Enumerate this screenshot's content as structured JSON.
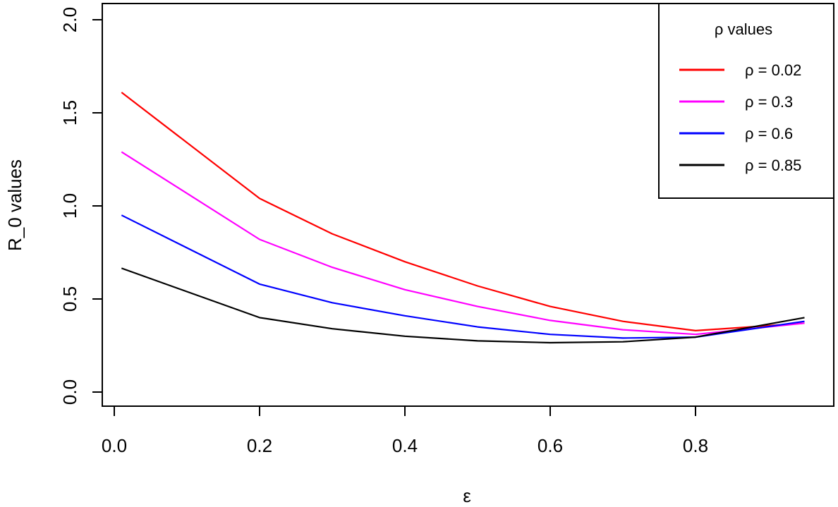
{
  "chart_data": {
    "type": "line",
    "title": "",
    "xlabel": "ε",
    "ylabel": "R_0 values",
    "xlim": [
      0.0,
      0.95
    ],
    "ylim": [
      0.0,
      2.0
    ],
    "xticks": [
      "0.0",
      "0.2",
      "0.4",
      "0.6",
      "0.8"
    ],
    "yticks": [
      "0.0",
      "0.5",
      "1.0",
      "1.5",
      "2.0"
    ],
    "grid": false,
    "legend": {
      "title": "ρ values",
      "position": "top-right",
      "entries": [
        "ρ = 0.02",
        "ρ = 0.3",
        "ρ = 0.6",
        "ρ = 0.85"
      ]
    },
    "x": [
      0.01,
      0.2,
      0.3,
      0.4,
      0.5,
      0.6,
      0.7,
      0.8,
      0.95
    ],
    "series": [
      {
        "name": "ρ = 0.02",
        "color": "#ff0000",
        "values": [
          1.61,
          1.04,
          0.85,
          0.7,
          0.57,
          0.46,
          0.38,
          0.33,
          0.37
        ]
      },
      {
        "name": "ρ = 0.3",
        "color": "#ff00ff",
        "values": [
          1.29,
          0.82,
          0.67,
          0.55,
          0.46,
          0.385,
          0.335,
          0.31,
          0.37
        ]
      },
      {
        "name": "ρ = 0.6",
        "color": "#0000ff",
        "values": [
          0.95,
          0.58,
          0.48,
          0.41,
          0.35,
          0.31,
          0.29,
          0.295,
          0.38
        ]
      },
      {
        "name": "ρ = 0.85",
        "color": "#000000",
        "values": [
          0.665,
          0.4,
          0.34,
          0.3,
          0.275,
          0.265,
          0.27,
          0.295,
          0.4
        ]
      }
    ]
  }
}
